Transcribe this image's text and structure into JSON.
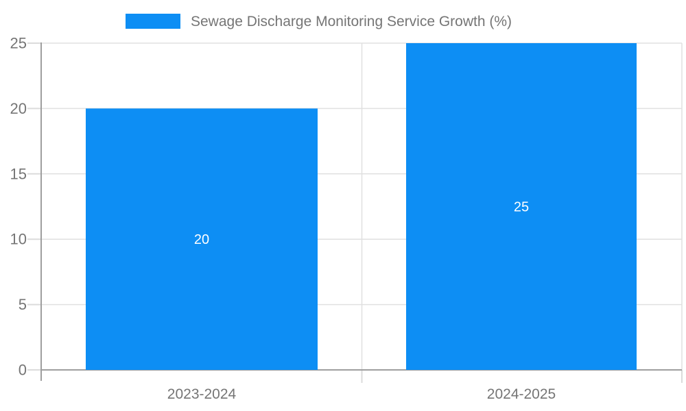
{
  "chart_data": {
    "type": "bar",
    "title": "Sewage Discharge Monitoring Service Growth (%)",
    "categories": [
      "2023-2024",
      "2024-2025"
    ],
    "values": [
      20,
      25
    ],
    "series": [
      {
        "name": "Sewage Discharge Monitoring Service Growth (%)",
        "values": [
          20,
          25
        ]
      }
    ],
    "xlabel": "",
    "ylabel": "",
    "ylim": [
      0,
      25
    ],
    "yticks": [
      "0",
      "5",
      "10",
      "15",
      "20",
      "25"
    ],
    "grid": true,
    "legend_position": "top-center",
    "bar_color": "#0d8ef4",
    "value_label_color": "#ffffff",
    "grid_color": "#e0e0e0",
    "axis_color": "#9e9e9e",
    "text_color": "#757575",
    "background": "#ffffff"
  }
}
